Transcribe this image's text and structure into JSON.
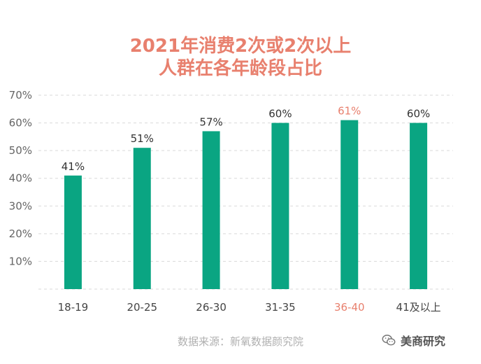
{
  "chart_data": {
    "type": "bar",
    "title": [
      "2021年消费2次或2次以上",
      "人群在各年龄段占比"
    ],
    "categories": [
      "18-19",
      "20-25",
      "26-30",
      "31-35",
      "36-40",
      "41及以上"
    ],
    "values": [
      41,
      51,
      57,
      60,
      61,
      60
    ],
    "value_labels": [
      "41%",
      "51%",
      "57%",
      "60%",
      "61%",
      "60%"
    ],
    "yticks": [
      "10%",
      "20%",
      "30%",
      "40%",
      "50%",
      "60%",
      "70%"
    ],
    "ylim": [
      0,
      70
    ],
    "grid": "dashed-horizontal",
    "bar_color": "#0aa582",
    "label_color": "#333333",
    "highlight_index": 4,
    "highlight_color": "#e8806e"
  },
  "source": "数据来源：新氧数据颜究院",
  "watermark": {
    "icon": "wechat-icon",
    "text": "美商研究"
  }
}
